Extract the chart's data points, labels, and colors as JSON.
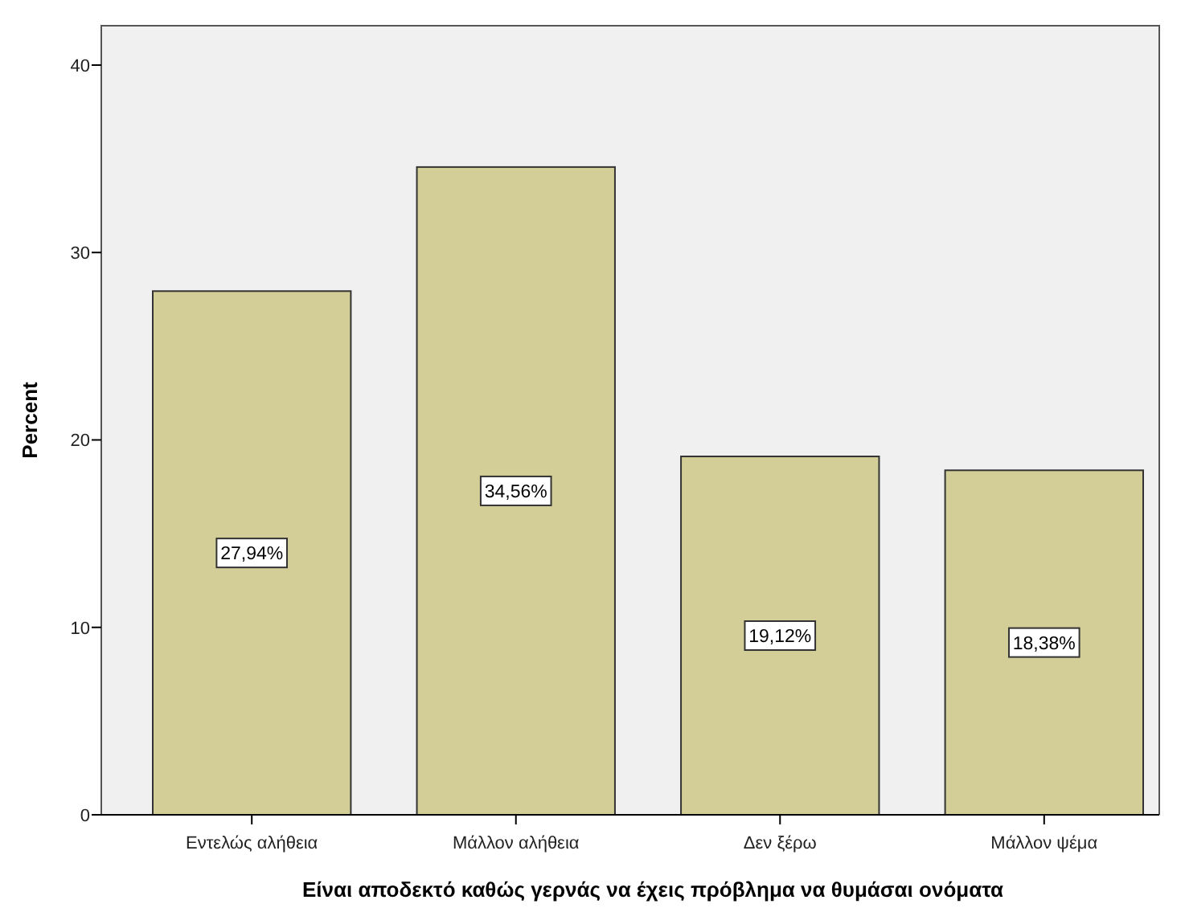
{
  "chart_data": {
    "type": "bar",
    "xlabel": "Είναι αποδεκτό καθώς γερνάς να έχεις πρόβλημα να θυμάσαι ονόματα",
    "ylabel": "Percent",
    "categories": [
      "Εντελώς αλήθεια",
      "Μάλλον αλήθεια",
      "Δεν ξέρω",
      "Μάλλον ψέμα"
    ],
    "values": [
      27.94,
      34.56,
      19.12,
      18.38
    ],
    "value_labels": [
      "27,94%",
      "34,56%",
      "19,12%",
      "18,38%"
    ],
    "color": "#d3cd98",
    "ylim": [
      0,
      42.1
    ],
    "yticks": [
      0,
      10,
      20,
      30,
      40
    ],
    "grid": false
  }
}
